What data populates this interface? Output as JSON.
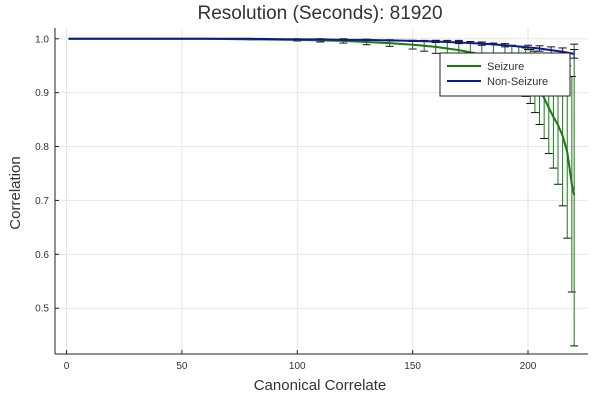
{
  "chart_data": {
    "type": "line",
    "title": "Resolution (Seconds): 81920",
    "xlabel": "Canonical Correlate",
    "ylabel": "Correlation",
    "xlim": [
      -5,
      226
    ],
    "ylim": [
      0.415,
      1.02
    ],
    "x_ticks": [
      "0",
      "50",
      "100",
      "150",
      "200"
    ],
    "y_ticks": [
      "0.5",
      "0.6",
      "0.7",
      "0.8",
      "0.9",
      "1.0"
    ],
    "grid": true,
    "legend_position": "top-right",
    "series": [
      {
        "name": "Seizure",
        "color": "#1a7a12",
        "x": [
          1,
          20,
          40,
          60,
          80,
          100,
          110,
          120,
          130,
          140,
          150,
          155,
          160,
          165,
          170,
          175,
          180,
          185,
          190,
          193,
          196,
          199,
          201,
          203,
          205,
          207,
          209,
          211,
          213,
          215,
          217,
          219,
          220
        ],
        "values": [
          1.0,
          1.0,
          1.0,
          1.0,
          0.999,
          0.998,
          0.997,
          0.996,
          0.994,
          0.992,
          0.989,
          0.987,
          0.985,
          0.982,
          0.979,
          0.975,
          0.971,
          0.966,
          0.958,
          0.953,
          0.946,
          0.938,
          0.93,
          0.92,
          0.906,
          0.89,
          0.872,
          0.855,
          0.84,
          0.82,
          0.79,
          0.73,
          0.71
        ],
        "errors": [
          0.0,
          0.0,
          0.0,
          0.0,
          0.001,
          0.002,
          0.003,
          0.004,
          0.005,
          0.006,
          0.008,
          0.01,
          0.012,
          0.015,
          0.018,
          0.02,
          0.023,
          0.026,
          0.03,
          0.035,
          0.04,
          0.045,
          0.05,
          0.057,
          0.065,
          0.075,
          0.085,
          0.095,
          0.11,
          0.13,
          0.16,
          0.2,
          0.28
        ]
      },
      {
        "name": "Non-Seizure",
        "color": "#0b1a8c",
        "x": [
          1,
          20,
          40,
          60,
          80,
          100,
          110,
          120,
          130,
          140,
          150,
          160,
          170,
          180,
          190,
          200,
          205,
          210,
          215,
          220
        ],
        "values": [
          1.0,
          1.0,
          1.0,
          1.0,
          1.0,
          0.999,
          0.999,
          0.998,
          0.998,
          0.997,
          0.996,
          0.995,
          0.993,
          0.991,
          0.988,
          0.984,
          0.982,
          0.979,
          0.976,
          0.972
        ],
        "errors": [
          0.0,
          0.0,
          0.0,
          0.0,
          0.0,
          0.0,
          0.0,
          0.0,
          0.001,
          0.001,
          0.001,
          0.002,
          0.002,
          0.003,
          0.003,
          0.004,
          0.005,
          0.006,
          0.007,
          0.008
        ]
      }
    ]
  }
}
